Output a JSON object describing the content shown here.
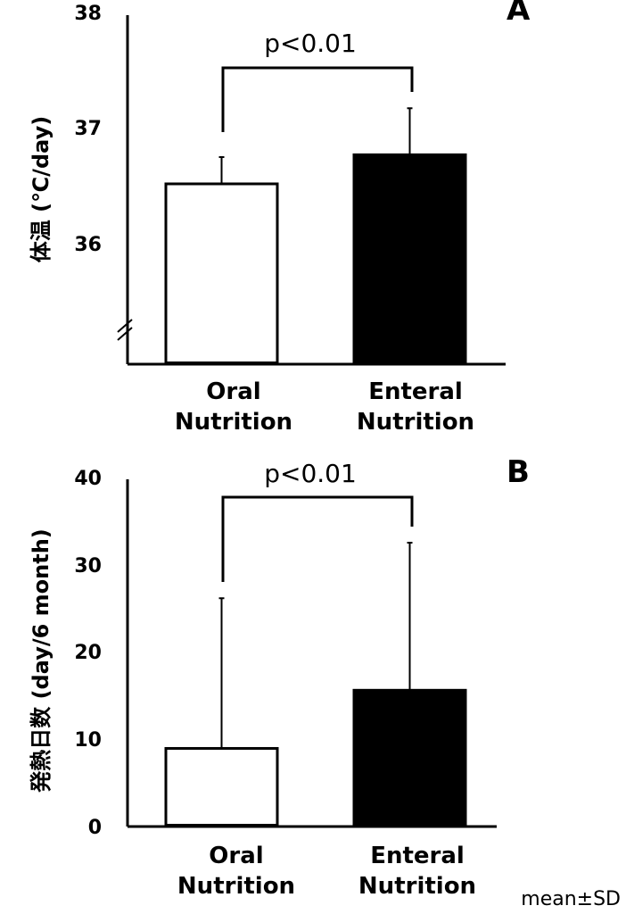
{
  "chart_data": [
    {
      "type": "bar",
      "panel": "A",
      "ylabel": "体温 (℃/day)",
      "ylim": [
        35,
        38
      ],
      "yticks": [
        "36",
        "37",
        "38"
      ],
      "axis_break": true,
      "categories": [
        {
          "line1": "Oral",
          "line2": "Nutrition"
        },
        {
          "line1": "Enteral",
          "line2": "Nutrition"
        }
      ],
      "values": [
        36.55,
        36.8
      ],
      "errors": [
        0.23,
        0.4
      ],
      "fills": [
        "#ffffff",
        "#000000"
      ],
      "significance": "p<0.01",
      "grid": false
    },
    {
      "type": "bar",
      "panel": "B",
      "ylabel": "発熱日数 (day/6 month)",
      "ylim": [
        0,
        40
      ],
      "yticks": [
        "0",
        "10",
        "20",
        "30",
        "40"
      ],
      "axis_break": false,
      "categories": [
        {
          "line1": "Oral",
          "line2": "Nutrition"
        },
        {
          "line1": "Enteral",
          "line2": "Nutrition"
        }
      ],
      "values": [
        9,
        15.7
      ],
      "errors": [
        17.3,
        17
      ],
      "fills": [
        "#ffffff",
        "#000000"
      ],
      "significance": "p<0.01",
      "grid": false
    }
  ],
  "footnote": "mean±SD"
}
